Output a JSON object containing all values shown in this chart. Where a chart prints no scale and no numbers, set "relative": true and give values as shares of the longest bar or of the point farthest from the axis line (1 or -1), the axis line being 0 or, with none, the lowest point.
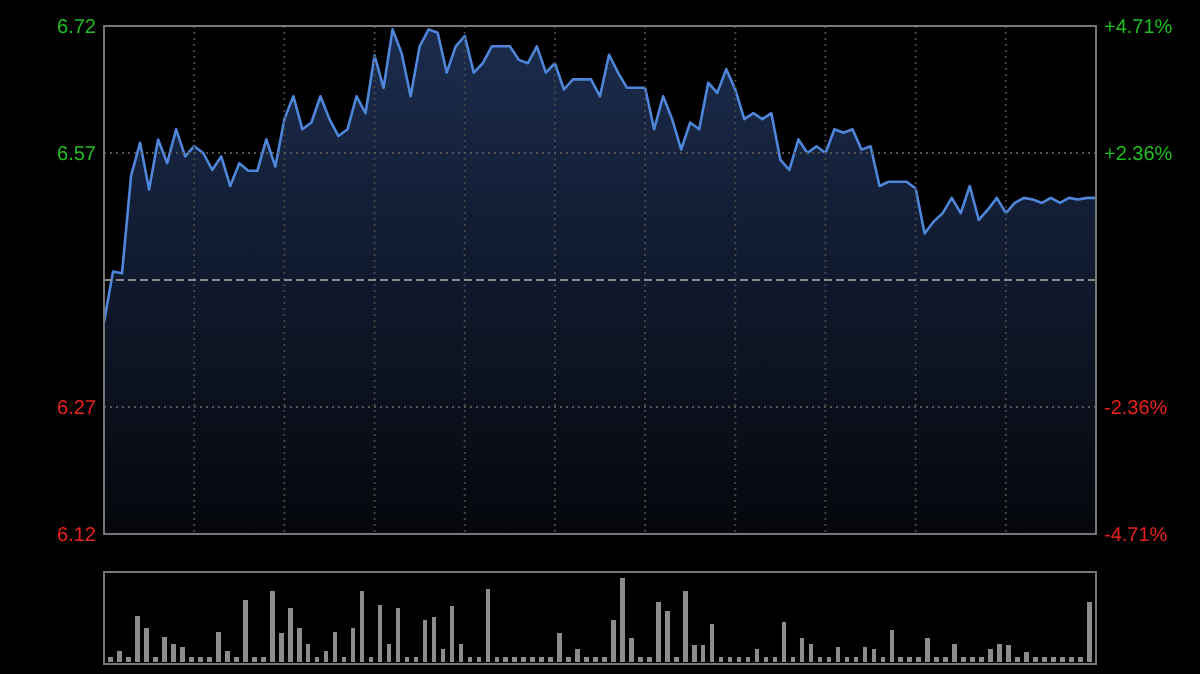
{
  "chart_data": [
    {
      "type": "area",
      "color": "#4f86d9",
      "grid": true,
      "categories": [
        null,
        null,
        null,
        null,
        null,
        null,
        null,
        null,
        null,
        null,
        null,
        null,
        null,
        null,
        null,
        null,
        null,
        null,
        null,
        null,
        null,
        null,
        null,
        null,
        null,
        null,
        null,
        null,
        null,
        null,
        null,
        null,
        null,
        null,
        null,
        null,
        null,
        null,
        null,
        null,
        null,
        null,
        null,
        null,
        null,
        null,
        null,
        null,
        null,
        null,
        null,
        null,
        null,
        null,
        null,
        null,
        null,
        null,
        null,
        null,
        null,
        null,
        null,
        null,
        null,
        null,
        null,
        null,
        null,
        null,
        null,
        null,
        null,
        null,
        null,
        null,
        null,
        null,
        null,
        null,
        null,
        null,
        null,
        null,
        null,
        null,
        null,
        null,
        null,
        null,
        null,
        null,
        null,
        null,
        null,
        null,
        null,
        null,
        null,
        null,
        null,
        null,
        null,
        null,
        null,
        null,
        null,
        null,
        null,
        null,
        null
      ],
      "values": [
        6.37,
        6.43,
        6.428,
        6.543,
        6.582,
        6.527,
        6.586,
        6.558,
        6.598,
        6.566,
        6.578,
        6.57,
        6.55,
        6.566,
        6.531,
        6.558,
        6.549,
        6.549,
        6.586,
        6.554,
        6.61,
        6.637,
        6.598,
        6.606,
        6.637,
        6.61,
        6.59,
        6.598,
        6.637,
        6.617,
        6.685,
        6.647,
        6.716,
        6.688,
        6.637,
        6.696,
        6.716,
        6.712,
        6.665,
        6.696,
        6.708,
        6.665,
        6.676,
        6.696,
        6.696,
        6.696,
        6.68,
        6.676,
        6.696,
        6.665,
        6.676,
        6.645,
        6.657,
        6.657,
        6.657,
        6.637,
        6.686,
        6.665,
        6.647,
        6.647,
        6.647,
        6.598,
        6.637,
        6.61,
        6.574,
        6.606,
        6.598,
        6.653,
        6.641,
        6.669,
        6.645,
        6.61,
        6.617,
        6.61,
        6.617,
        6.562,
        6.55,
        6.586,
        6.57,
        6.578,
        6.57,
        6.598,
        6.594,
        6.598,
        6.574,
        6.578,
        6.531,
        6.536,
        6.536,
        6.536,
        6.528,
        6.475,
        6.489,
        6.499,
        6.517,
        6.499,
        6.531,
        6.491,
        6.503,
        6.517,
        6.499,
        6.511,
        6.517,
        6.515,
        6.511,
        6.517,
        6.511,
        6.517,
        6.515,
        6.517,
        6.517
      ],
      "ylim": [
        6.12,
        6.72
      ],
      "yticks": [
        6.12,
        6.27,
        6.57,
        6.72
      ],
      "y2lim": [
        -4.71,
        4.71
      ],
      "y2ticks": [
        {
          "value": -4.71,
          "label": "-4.71%"
        },
        {
          "value": -2.36,
          "label": "-2.36%"
        },
        {
          "value": 2.36,
          "label": "+2.36%"
        },
        {
          "value": 4.71,
          "label": "+4.71%"
        }
      ],
      "ref_lines": [
        {
          "axis": "y",
          "value": 6.42,
          "line_style": "dashed",
          "color": "#8a8a8a"
        }
      ]
    },
    {
      "type": "bar",
      "relative": true,
      "color": "#8c8c8c",
      "categories": [
        null,
        null,
        null,
        null,
        null,
        null,
        null,
        null,
        null,
        null,
        null,
        null,
        null,
        null,
        null,
        null,
        null,
        null,
        null,
        null,
        null,
        null,
        null,
        null,
        null,
        null,
        null,
        null,
        null,
        null,
        null,
        null,
        null,
        null,
        null,
        null,
        null,
        null,
        null,
        null,
        null,
        null,
        null,
        null,
        null,
        null,
        null,
        null,
        null,
        null,
        null,
        null,
        null,
        null,
        null,
        null,
        null,
        null,
        null,
        null,
        null,
        null,
        null,
        null,
        null,
        null,
        null,
        null,
        null,
        null,
        null,
        null,
        null,
        null,
        null,
        null,
        null,
        null,
        null,
        null,
        null,
        null,
        null,
        null,
        null,
        null,
        null,
        null,
        null,
        null,
        null,
        null,
        null,
        null,
        null,
        null,
        null,
        null,
        null,
        null,
        null,
        null,
        null,
        null,
        null,
        null,
        null,
        null,
        null,
        null
      ],
      "values": [
        0.06,
        0.13,
        0.06,
        0.55,
        0.41,
        0.06,
        0.3,
        0.21,
        0.18,
        0.06,
        0.06,
        0.06,
        0.36,
        0.13,
        0.06,
        0.74,
        0.06,
        0.06,
        0.85,
        0.34,
        0.64,
        0.41,
        0.21,
        0.06,
        0.13,
        0.36,
        0.06,
        0.41,
        0.84,
        0.06,
        0.68,
        0.21,
        0.64,
        0.06,
        0.06,
        0.5,
        0.53,
        0.15,
        0.67,
        0.22,
        0.06,
        0.06,
        0.87,
        0.06,
        0.06,
        0.06,
        0.06,
        0.06,
        0.06,
        0.06,
        0.34,
        0.06,
        0.15,
        0.06,
        0.06,
        0.06,
        0.5,
        1,
        0.29,
        0.06,
        0.06,
        0.72,
        0.61,
        0.06,
        0.84,
        0.2,
        0.2,
        0.45,
        0.06,
        0.06,
        0.06,
        0.06,
        0.15,
        0.06,
        0.06,
        0.48,
        0.06,
        0.29,
        0.21,
        0.06,
        0.06,
        0.18,
        0.06,
        0.06,
        0.18,
        0.15,
        0.06,
        0.38,
        0.06,
        0.06,
        0.06,
        0.28,
        0.06,
        0.06,
        0.22,
        0.06,
        0.06,
        0.06,
        0.15,
        0.22,
        0.2,
        0.06,
        0.12,
        0.06,
        0.06,
        0.06,
        0.06,
        0.06,
        0.06,
        0.72
      ]
    }
  ]
}
